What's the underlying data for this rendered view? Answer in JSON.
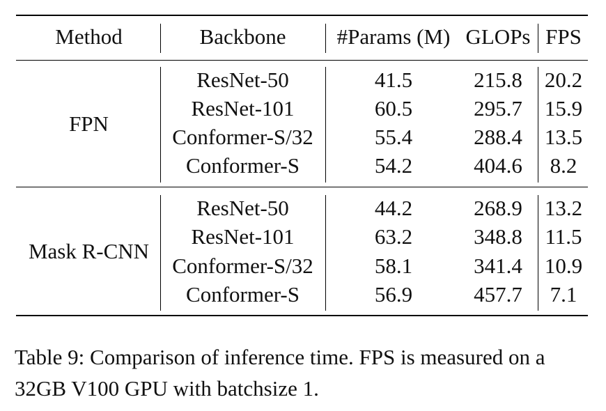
{
  "table": {
    "headers": {
      "method": "Method",
      "backbone": "Backbone",
      "params": "#Params (M)",
      "glops": "GLOPs",
      "fps": "FPS"
    },
    "groups": [
      {
        "method": "FPN",
        "rows": [
          {
            "backbone": "ResNet-50",
            "params": "41.5",
            "glops": "215.8",
            "fps": "20.2"
          },
          {
            "backbone": "ResNet-101",
            "params": "60.5",
            "glops": "295.7",
            "fps": "15.9"
          },
          {
            "backbone": "Conformer-S/32",
            "params": "55.4",
            "glops": "288.4",
            "fps": "13.5"
          },
          {
            "backbone": "Conformer-S",
            "params": "54.2",
            "glops": "404.6",
            "fps": "8.2"
          }
        ]
      },
      {
        "method": "Mask R-CNN",
        "rows": [
          {
            "backbone": "ResNet-50",
            "params": "44.2",
            "glops": "268.9",
            "fps": "13.2"
          },
          {
            "backbone": "ResNet-101",
            "params": "63.2",
            "glops": "348.8",
            "fps": "11.5"
          },
          {
            "backbone": "Conformer-S/32",
            "params": "58.1",
            "glops": "341.4",
            "fps": "10.9"
          },
          {
            "backbone": "Conformer-S",
            "params": "56.9",
            "glops": "457.7",
            "fps": "7.1"
          }
        ]
      }
    ]
  },
  "caption": "Table 9: Comparison of inference time. FPS is measured on a 32GB V100 GPU with batchsize 1."
}
